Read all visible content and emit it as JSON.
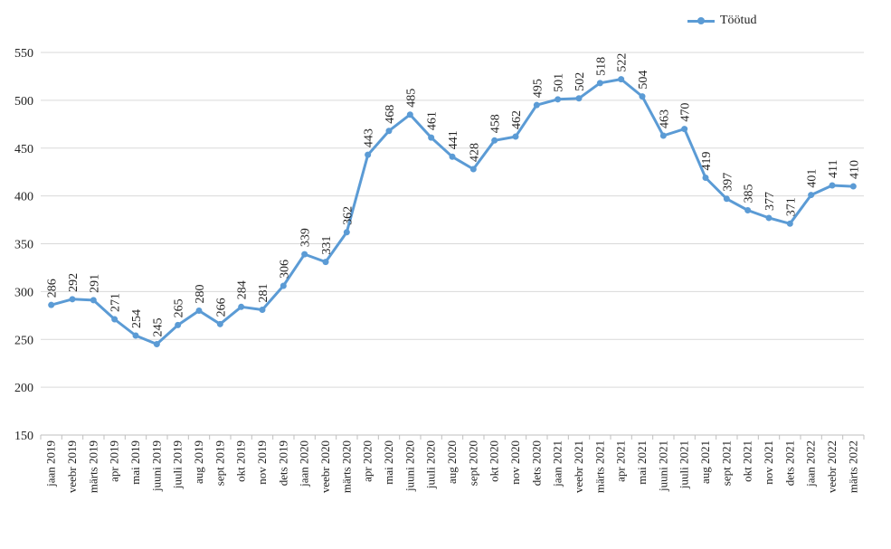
{
  "chart_data": {
    "type": "line",
    "title": "",
    "xlabel": "",
    "ylabel": "",
    "ylim": [
      150,
      550
    ],
    "yticks": [
      150,
      200,
      250,
      300,
      350,
      400,
      450,
      500,
      550
    ],
    "grid": true,
    "legend_position": "top-right",
    "categories": [
      "jaan 2019",
      "veebr 2019",
      "märts 2019",
      "apr 2019",
      "mai 2019",
      "juuni 2019",
      "juuli 2019",
      "aug 2019",
      "sept 2019",
      "okt 2019",
      "nov 2019",
      "dets 2019",
      "jaan 2020",
      "veebr 2020",
      "märts 2020",
      "apr 2020",
      "mai 2020",
      "juuni 2020",
      "juuli 2020",
      "aug 2020",
      "sept 2020",
      "okt 2020",
      "nov 2020",
      "dets 2020",
      "jaan 2021",
      "veebr 2021",
      "märts 2021",
      "apr 2021",
      "mai 2021",
      "juuni 2021",
      "juuli 2021",
      "aug 2021",
      "sept 2021",
      "okt 2021",
      "nov 2021",
      "dets 2021",
      "jaan 2022",
      "veebr 2022",
      "märts 2022"
    ],
    "series": [
      {
        "name": "Töötud",
        "color": "#5b9bd5",
        "values": [
          286,
          292,
          291,
          271,
          254,
          245,
          265,
          280,
          266,
          284,
          281,
          306,
          339,
          331,
          362,
          443,
          468,
          485,
          461,
          441,
          428,
          458,
          462,
          495,
          501,
          502,
          518,
          522,
          504,
          463,
          470,
          419,
          397,
          385,
          377,
          371,
          401,
          411,
          410
        ]
      }
    ]
  }
}
